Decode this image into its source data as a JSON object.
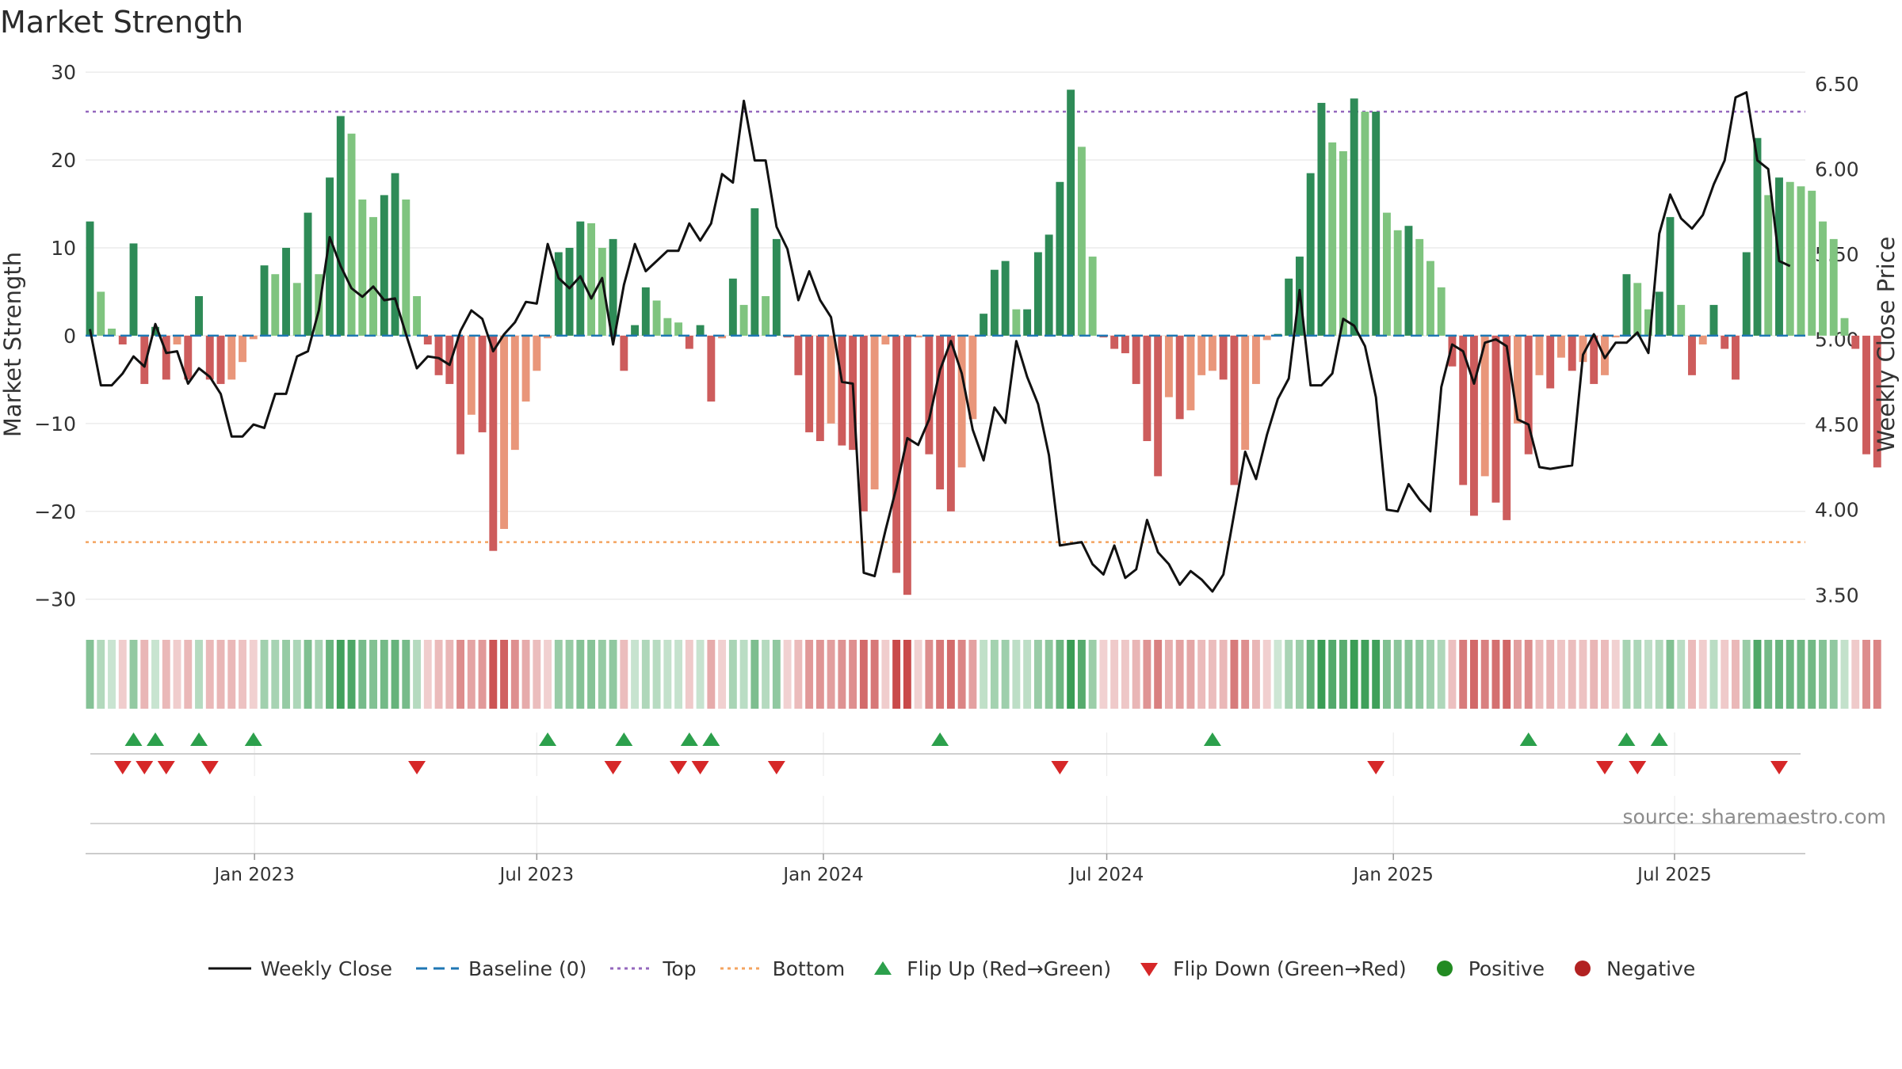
{
  "chart_data": {
    "type": "bar+line",
    "title": "Market Strength",
    "ylabel_left": "Market Strength",
    "ylabel_right": "Weekly Close Price",
    "ylim_left": [
      -33,
      31
    ],
    "yticks_left": [
      30,
      20,
      10,
      0,
      -10,
      -20,
      -30
    ],
    "ytick_labels_left": [
      "30",
      "20",
      "10",
      "0",
      "−10",
      "−20",
      "−30"
    ],
    "ylim_right": [
      3.32,
      6.62
    ],
    "yticks_right": [
      6.5,
      6.0,
      5.5,
      5.0,
      4.5,
      4.0,
      3.5
    ],
    "ytick_labels_right": [
      "6.50",
      "6.00",
      "5.50",
      "5.00",
      "4.50",
      "4.00",
      "3.50"
    ],
    "x_start": "2022-08-26",
    "x_range_weeks": [
      -0.4,
      157.4
    ],
    "xticks": [
      {
        "label": "Jan 2023",
        "week": 15.1
      },
      {
        "label": "Jul 2023",
        "week": 41.0
      },
      {
        "label": "Jan 2024",
        "week": 67.3
      },
      {
        "label": "Jul 2024",
        "week": 93.3
      },
      {
        "label": "Jan 2025",
        "week": 119.6
      },
      {
        "label": "Jul 2025",
        "week": 145.4
      }
    ],
    "thresholds": {
      "top": 25.5,
      "bottom": -23.5,
      "baseline": 0
    },
    "strength": [
      13,
      5,
      0.8,
      -1,
      10.5,
      -5.5,
      1,
      -5,
      -1,
      -5,
      4.5,
      -5,
      -5.5,
      -5,
      -3,
      -0.4,
      8,
      7,
      10,
      6,
      14,
      7,
      18,
      25,
      23,
      15.5,
      13.5,
      16,
      18.5,
      15.5,
      4.5,
      -1,
      -4.5,
      -5.5,
      -13.5,
      -9,
      -11,
      -24.5,
      -22,
      -13,
      -7.5,
      -4,
      -0.3,
      9.5,
      10,
      13,
      12.8,
      10,
      11,
      -4,
      1.2,
      5.5,
      4,
      2,
      1.5,
      -1.5,
      1.2,
      -7.5,
      -0.3,
      6.5,
      3.5,
      14.5,
      4.5,
      11,
      -0.2,
      -4.5,
      -11,
      -12,
      -10,
      -12.5,
      -13,
      -20,
      -17.5,
      -1,
      -27,
      -29.5,
      -0.2,
      -13.5,
      -17.5,
      -20,
      -15,
      -9.5,
      2.5,
      7.5,
      8.5,
      3,
      3,
      9.5,
      11.5,
      17.5,
      28,
      21.5,
      9,
      -0.2,
      -1.5,
      -2,
      -5.5,
      -12,
      -16,
      -7,
      -9.5,
      -8.5,
      -4.5,
      -4,
      -5,
      -17,
      -13,
      -5.5,
      -0.5,
      0.2,
      6.5,
      9,
      18.5,
      26.5,
      22,
      21,
      27,
      25.5,
      25.5,
      14,
      12,
      12.5,
      11,
      8.5,
      5.5,
      -3.5,
      -17,
      -20.5,
      -16,
      -19,
      -21,
      -10,
      -13.5,
      -4.5,
      -6,
      -2.5,
      -4,
      -3,
      -5.5,
      -4.5,
      -0.2,
      7,
      6,
      3,
      5,
      13.5,
      3.5,
      -4.5,
      -1,
      3.5,
      -1.5,
      -5,
      9.5,
      22.5,
      16,
      18,
      17.5,
      17,
      16.5,
      13,
      11,
      2,
      -1.5,
      -13.5,
      -15
    ],
    "weekly_close": [
      5.06,
      4.73,
      4.73,
      4.8,
      4.9,
      4.84,
      5.09,
      4.92,
      4.93,
      4.74,
      4.83,
      4.78,
      4.68,
      4.43,
      4.43,
      4.5,
      4.48,
      4.68,
      4.68,
      4.9,
      4.93,
      5.17,
      5.6,
      5.43,
      5.3,
      5.25,
      5.31,
      5.23,
      5.24,
      5.03,
      4.83,
      4.9,
      4.89,
      4.85,
      5.05,
      5.17,
      5.12,
      4.93,
      5.03,
      5.1,
      5.22,
      5.21,
      5.56,
      5.36,
      5.3,
      5.37,
      5.24,
      5.36,
      4.97,
      5.32,
      5.56,
      5.4,
      5.46,
      5.52,
      5.52,
      5.68,
      5.58,
      5.68,
      5.97,
      5.92,
      6.4,
      6.05,
      6.05,
      5.66,
      5.53,
      5.23,
      5.4,
      5.23,
      5.13,
      4.75,
      4.74,
      3.63,
      3.61,
      3.88,
      4.13,
      4.42,
      4.38,
      4.53,
      4.82,
      4.99,
      4.8,
      4.47,
      4.29,
      4.6,
      4.51,
      4.99,
      4.78,
      4.62,
      4.32,
      3.79,
      3.8,
      3.81,
      3.68,
      3.62,
      3.79,
      3.6,
      3.65,
      3.94,
      3.75,
      3.68,
      3.56,
      3.64,
      3.59,
      3.52,
      3.62,
      3.98,
      4.34,
      4.18,
      4.44,
      4.65,
      4.77,
      5.29,
      4.73,
      4.73,
      4.8,
      5.12,
      5.08,
      4.96,
      4.66,
      4.0,
      3.99,
      4.15,
      4.06,
      3.99,
      4.72,
      4.97,
      4.93,
      4.74,
      4.98,
      5.0,
      4.96,
      4.53,
      4.5,
      4.25,
      4.24,
      4.25,
      4.26,
      4.91,
      5.03,
      4.89,
      4.98,
      4.98,
      5.04,
      4.92,
      5.62,
      5.85,
      5.71,
      5.65,
      5.73,
      5.91,
      6.05,
      6.42,
      6.45,
      6.05,
      6.0,
      5.46,
      5.43
    ],
    "flips_up": [
      4,
      6,
      10,
      15,
      42,
      49,
      55,
      57,
      78,
      103,
      132,
      141,
      144
    ],
    "flips_down": [
      3,
      5,
      7,
      11,
      30,
      48,
      54,
      56,
      63,
      89,
      118,
      139,
      142,
      155
    ],
    "legend_labels": [
      "Weekly Close",
      "Baseline (0)",
      "Top",
      "Bottom",
      "Flip Up (Red→Green)",
      "Flip Down (Green→Red)",
      "Positive",
      "Negative"
    ],
    "source": "source: sharemaestro.com"
  },
  "colors": {
    "positive_strong": "#2e8b57",
    "positive_light": "#7fc47f",
    "negative_strong": "#cd5c5c",
    "negative_light": "#e9967a",
    "line": "#111111",
    "baseline": "#1f77b4",
    "top": "#9467bd",
    "bottom": "#f4a460",
    "flip_up": "#2ca04c",
    "flip_down": "#d62728",
    "pos_dot": "#228b22",
    "neg_dot": "#b22222"
  }
}
